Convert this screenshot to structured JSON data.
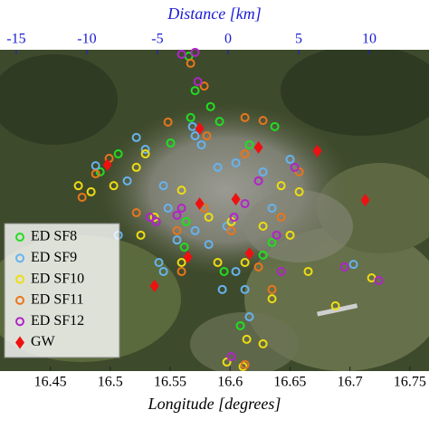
{
  "chart_data": {
    "type": "scatter",
    "xlabel": "Longitude [degrees]",
    "x2label": "Distance [km]",
    "xlim": [
      16.408,
      16.766
    ],
    "xticks": [
      16.45,
      16.5,
      16.55,
      16.6,
      16.65,
      16.7,
      16.75
    ],
    "x2lim": [
      -16.15,
      14.23
    ],
    "x2ticks": [
      -15,
      -10,
      -5,
      0,
      5,
      10
    ],
    "x2color": "#1a1ad6",
    "ylim": [
      0,
      100
    ],
    "legend": "lower left",
    "series": [
      {
        "name": "ED SF8",
        "color": "#22dd22",
        "marker": "circle",
        "x": [
          16.5655,
          16.5708,
          16.5837,
          16.5671,
          16.5912,
          16.5504,
          16.6373,
          16.5067,
          16.6161,
          16.5633,
          16.5618,
          16.595,
          16.6275,
          16.635,
          16.4916,
          16.6086
        ],
        "y": [
          98.0,
          87.3,
          82.3,
          78.9,
          77.7,
          71.0,
          76.1,
          67.6,
          70.4,
          46.5,
          38.6,
          31.0,
          36.1,
          40.0,
          62.0,
          14.1
        ]
      },
      {
        "name": "ED SF9",
        "color": "#66b3ee",
        "marker": "circle",
        "x": [
          16.5686,
          16.5708,
          16.5761,
          16.5218,
          16.5293,
          16.4878,
          16.5444,
          16.5897,
          16.6048,
          16.6275,
          16.6501,
          16.5557,
          16.5708,
          16.5406,
          16.5444,
          16.5822,
          16.6048,
          16.6124,
          16.6161,
          16.5935,
          16.5142,
          16.703,
          16.5067,
          16.5482,
          16.635,
          16.5973
        ],
        "y": [
          76.1,
          73.2,
          70.4,
          72.7,
          69.0,
          63.9,
          57.7,
          63.4,
          64.8,
          62.0,
          65.9,
          40.8,
          43.7,
          33.8,
          31.0,
          39.4,
          31.0,
          25.4,
          16.9,
          25.4,
          59.2,
          33.2,
          42.3,
          50.7,
          50.7,
          45.1
        ]
      },
      {
        "name": "ED SF10",
        "color": "#eedd11",
        "marker": "circle",
        "x": [
          16.4734,
          16.484,
          16.5029,
          16.5218,
          16.5293,
          16.5595,
          16.5822,
          16.601,
          16.6124,
          16.6426,
          16.6577,
          16.6501,
          16.6652,
          16.635,
          16.6275,
          16.6139,
          16.5973,
          16.6108,
          16.6879,
          16.7181,
          16.5255,
          16.5369,
          16.5595,
          16.5897,
          16.6275
        ],
        "y": [
          57.7,
          55.8,
          57.7,
          63.4,
          67.6,
          56.3,
          47.9,
          46.5,
          33.8,
          57.7,
          55.8,
          42.3,
          31.0,
          22.5,
          8.5,
          9.9,
          2.8,
          1.4,
          20.3,
          29.0,
          42.3,
          47.9,
          33.8,
          33.8,
          45.1
        ]
      },
      {
        "name": "ED SF11",
        "color": "#e8761c",
        "marker": "circle",
        "x": [
          16.5671,
          16.5784,
          16.6124,
          16.6275,
          16.5482,
          16.5806,
          16.6124,
          16.4878,
          16.4765,
          16.5218,
          16.5557,
          16.5784,
          16.601,
          16.6577,
          16.6237,
          16.635,
          16.6124,
          16.4991,
          16.5595,
          16.6426
        ],
        "y": [
          95.8,
          88.7,
          78.9,
          78.0,
          77.5,
          73.2,
          67.6,
          61.4,
          54.1,
          49.3,
          43.7,
          50.7,
          43.7,
          62.0,
          32.4,
          25.4,
          2.0,
          66.2,
          31.0,
          47.9
        ]
      },
      {
        "name": "ED SF12",
        "color": "#b025c8",
        "marker": "circle",
        "x": [
          16.5595,
          16.5708,
          16.5731,
          16.5331,
          16.5384,
          16.5557,
          16.5595,
          16.6124,
          16.6033,
          16.6388,
          16.6539,
          16.6426,
          16.7241,
          16.601,
          16.6954,
          16.6237
        ],
        "y": [
          98.6,
          99.2,
          90.1,
          47.9,
          46.5,
          48.5,
          50.7,
          52.1,
          47.9,
          42.3,
          63.4,
          31.0,
          28.2,
          4.5,
          32.4,
          59.2
        ]
      },
      {
        "name": "GW",
        "color": "#ee1111",
        "marker": "diamond",
        "x": [
          16.5746,
          16.6237,
          16.6728,
          16.4976,
          16.6048,
          16.7128,
          16.5746,
          16.5648,
          16.6162,
          16.5369
        ],
        "y": [
          75.5,
          69.6,
          68.5,
          64.2,
          53.5,
          53.2,
          52.1,
          35.5,
          36.6,
          26.5
        ]
      }
    ]
  }
}
